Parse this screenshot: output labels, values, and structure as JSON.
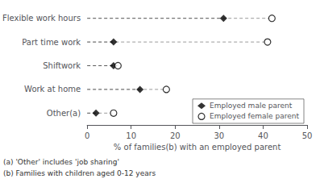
{
  "chart_data": {
    "type": "scatter",
    "categories": [
      "Flexible work hours",
      "Part time work",
      "Shiftwork",
      "Work at home",
      "Other(a)"
    ],
    "series": [
      {
        "name": "Employed male parent",
        "color": "#000000",
        "marker": "diamond",
        "values": [
          31,
          6,
          6,
          12,
          2
        ]
      },
      {
        "name": "Employed female parent",
        "color": "#000000",
        "marker": "open circle",
        "values": [
          42,
          41,
          7,
          18,
          6
        ]
      }
    ],
    "xlabel": "% of families(b) with an employed parent",
    "xlim": [
      0,
      50
    ],
    "xticks": [
      0,
      10,
      20,
      30,
      40,
      50
    ],
    "line_style": "dashed",
    "grid": false,
    "legend": "lower right",
    "annotations": [
      "(a) 'Other' includes 'job sharing'",
      "(b) Families with children aged 0-12 years"
    ]
  }
}
